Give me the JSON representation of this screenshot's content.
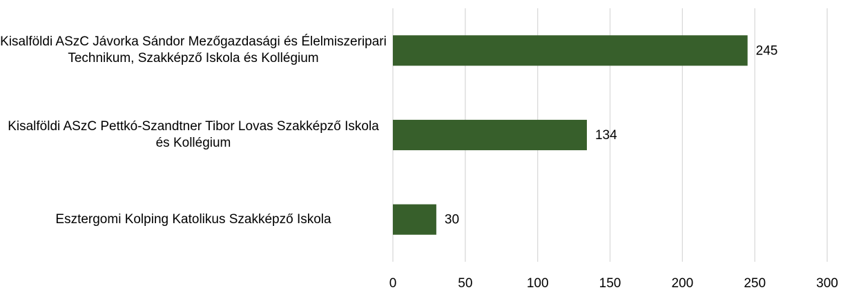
{
  "chart_data": {
    "type": "bar",
    "orientation": "horizontal",
    "categories": [
      "Kisalföldi ASzC Jávorka Sándor Mezőgazdasági és Élelmiszeripari Technikum, Szakképző Iskola és Kollégium",
      "Kisalföldi ASzC Pettkó-Szandtner Tibor Lovas Szakképző Iskola és Kollégium",
      "Esztergomi Kolping Katolikus Szakképző Iskola"
    ],
    "values": [
      245,
      134,
      30
    ],
    "color": "#375f2b",
    "xlim": [
      0,
      300
    ],
    "xticks": [
      0,
      50,
      100,
      150,
      200,
      250,
      300
    ],
    "grid": true
  }
}
